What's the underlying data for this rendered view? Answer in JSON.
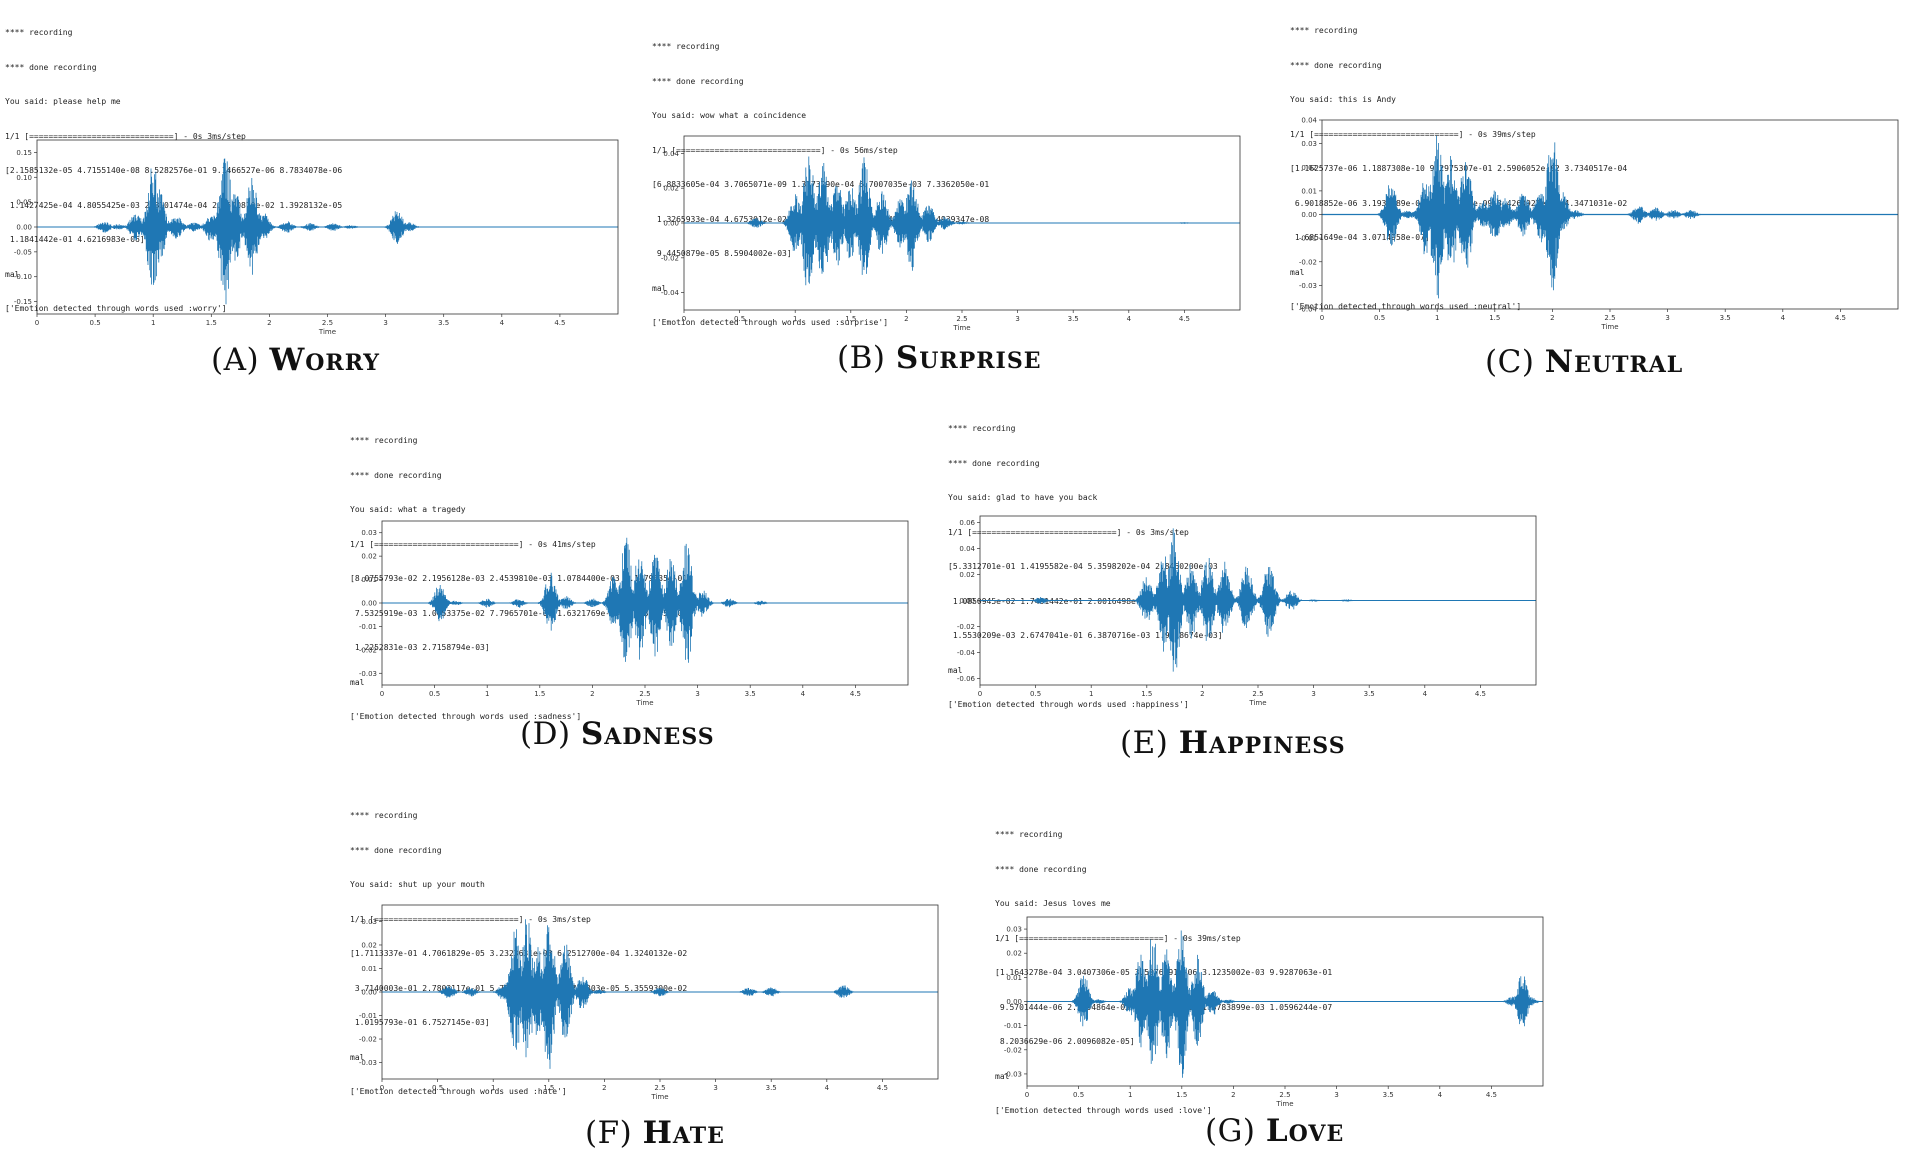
{
  "colors": {
    "wave": "#1f77b4",
    "axes": "#333333",
    "caption": "#111111"
  },
  "panels": [
    {
      "id": "A",
      "caption": {
        "letter": "(A)",
        "label": "Worry"
      },
      "console": [
        "**** recording",
        "**** done recording",
        "You said: please help me",
        "1/1 [==============================] - 0s 3ms/step",
        "[2.1585132e-05 4.7155140e-08 8.5282576e-01 9.1466527e-06 8.7834078e-06",
        " 1.1427425e-04 4.8055425e-03 2.8101474e-04 2.3500878e-02 1.3928132e-05",
        " 1.1841442e-01 4.6216983e-06]",
        "mal",
        "['Emotion detected through words used :worry']"
      ],
      "chart_data": {
        "type": "line",
        "xlabel": "Time",
        "ylabel": "",
        "xlim": [
          0,
          5
        ],
        "ylim": [
          -0.175,
          0.175
        ],
        "xticks": [
          "0",
          "0.5",
          "1",
          "1.5",
          "2",
          "2.5",
          "3",
          "3.5",
          "4",
          "4.5"
        ],
        "yticks": [
          "0.15",
          "0.10",
          "0.05",
          "0.00",
          "-0.05",
          "-0.10",
          "-0.15"
        ],
        "grid": false,
        "envelope": [
          {
            "x": 0.58,
            "amp": 0.012
          },
          {
            "x": 0.7,
            "amp": 0.006
          },
          {
            "x": 0.85,
            "amp": 0.03
          },
          {
            "x": 1.0,
            "amp": 0.14
          },
          {
            "x": 1.05,
            "amp": 0.08
          },
          {
            "x": 1.2,
            "amp": 0.025
          },
          {
            "x": 1.35,
            "amp": 0.01
          },
          {
            "x": 1.5,
            "amp": 0.03
          },
          {
            "x": 1.62,
            "amp": 0.16
          },
          {
            "x": 1.7,
            "amp": 0.08
          },
          {
            "x": 1.85,
            "amp": 0.1
          },
          {
            "x": 1.95,
            "amp": 0.03
          },
          {
            "x": 2.15,
            "amp": 0.012
          },
          {
            "x": 2.35,
            "amp": 0.008
          },
          {
            "x": 2.55,
            "amp": 0.008
          },
          {
            "x": 2.7,
            "amp": 0.004
          },
          {
            "x": 3.1,
            "amp": 0.035
          },
          {
            "x": 3.2,
            "amp": 0.01
          }
        ]
      }
    },
    {
      "id": "B",
      "caption": {
        "letter": "(B)",
        "label": "Surprise"
      },
      "console": [
        "**** recording",
        "**** done recording",
        "You said: wow what a coincidence",
        "1/1 [==============================] - 0s 56ms/step",
        "[6.8833605e-04 3.7065071e-09 1.3773290e-04 6.7007035e-03 7.3362050e-01",
        " 1.3265933e-04 4.6753012e-02 2.0993219e-03 2.0117477e-01 2.4939347e-08",
        " 9.4450879e-05 8.5904002e-03]",
        "mal",
        "['Emotion detected through words used :surprise']"
      ],
      "chart_data": {
        "type": "line",
        "xlabel": "Time",
        "ylabel": "",
        "xlim": [
          0,
          5
        ],
        "ylim": [
          -0.05,
          0.05
        ],
        "xticks": [
          "0",
          "0.5",
          "1",
          "1.5",
          "2",
          "2.5",
          "3",
          "3.5",
          "4",
          "4.5"
        ],
        "yticks": [
          "0.04",
          "0.02",
          "0.00",
          "-0.02",
          "-0.04"
        ],
        "grid": false,
        "envelope": [
          {
            "x": 0.65,
            "amp": 0.003
          },
          {
            "x": 1.0,
            "amp": 0.018
          },
          {
            "x": 1.12,
            "amp": 0.045
          },
          {
            "x": 1.25,
            "amp": 0.035
          },
          {
            "x": 1.38,
            "amp": 0.025
          },
          {
            "x": 1.5,
            "amp": 0.022
          },
          {
            "x": 1.62,
            "amp": 0.038
          },
          {
            "x": 1.78,
            "amp": 0.02
          },
          {
            "x": 1.95,
            "amp": 0.015
          },
          {
            "x": 2.05,
            "amp": 0.028
          },
          {
            "x": 2.2,
            "amp": 0.012
          },
          {
            "x": 2.35,
            "amp": 0.004
          },
          {
            "x": 2.5,
            "amp": 0.001
          },
          {
            "x": 4.5,
            "amp": 0.0005
          }
        ]
      }
    },
    {
      "id": "C",
      "caption": {
        "letter": "(C)",
        "label": "Neutral"
      },
      "console": [
        "**** recording",
        "**** done recording",
        "You said: this is Andy",
        "1/1 [==============================] - 0s 39ms/step",
        "[1.1625737e-06 1.1887308e-10 9.2975307e-01 2.5906052e-02 3.7340517e-04",
        " 6.9018852e-06 3.1934789e-08 2.4279323e-09 3.4260927e-07 4.3471031e-02",
        " 1.6851649e-04 3.0714958e-07]",
        "mal",
        "['Emotion detected through words used :neutral']"
      ],
      "chart_data": {
        "type": "line",
        "xlabel": "Time",
        "ylabel": "",
        "xlim": [
          0,
          5
        ],
        "ylim": [
          -0.04,
          0.04
        ],
        "xticks": [
          "0",
          "0.5",
          "1",
          "1.5",
          "2",
          "2.5",
          "3",
          "3.5",
          "4",
          "4.5"
        ],
        "yticks": [
          "0.04",
          "0.03",
          "0.02",
          "0.01",
          "0.00",
          "-0.01",
          "-0.02",
          "-0.03",
          "-0.04"
        ],
        "grid": false,
        "envelope": [
          {
            "x": 0.6,
            "amp": 0.015
          },
          {
            "x": 0.75,
            "amp": 0.002
          },
          {
            "x": 0.9,
            "amp": 0.018
          },
          {
            "x": 1.0,
            "amp": 0.037
          },
          {
            "x": 1.12,
            "amp": 0.025
          },
          {
            "x": 1.25,
            "amp": 0.028
          },
          {
            "x": 1.4,
            "amp": 0.006
          },
          {
            "x": 1.5,
            "amp": 0.012
          },
          {
            "x": 1.6,
            "amp": 0.008
          },
          {
            "x": 1.75,
            "amp": 0.01
          },
          {
            "x": 1.9,
            "amp": 0.012
          },
          {
            "x": 2.0,
            "amp": 0.035
          },
          {
            "x": 2.08,
            "amp": 0.01
          },
          {
            "x": 2.2,
            "amp": 0.002
          },
          {
            "x": 2.75,
            "amp": 0.004
          },
          {
            "x": 2.9,
            "amp": 0.003
          },
          {
            "x": 3.05,
            "amp": 0.002
          },
          {
            "x": 3.2,
            "amp": 0.002
          }
        ]
      }
    },
    {
      "id": "D",
      "caption": {
        "letter": "(D)",
        "label": "Sadness"
      },
      "console": [
        "**** recording",
        "**** done recording",
        "You said: what a tragedy",
        "1/1 [==============================] - 0s 41ms/step",
        "[8.0755793e-02 2.1956128e-03 2.4539810e-03 1.0784400e-03 8.1479335e-01",
        " 7.5325919e-03 1.0053375e-02 7.7965701e-04 1.6321769e-04 7.7032365e-02",
        " 1.2252831e-03 2.7158794e-03]",
        "mal",
        "['Emotion detected through words used :sadness']"
      ],
      "chart_data": {
        "type": "line",
        "xlabel": "Time",
        "ylabel": "",
        "xlim": [
          0,
          5
        ],
        "ylim": [
          -0.035,
          0.035
        ],
        "xticks": [
          "0",
          "0.5",
          "1",
          "1.5",
          "2",
          "2.5",
          "3",
          "3.5",
          "4",
          "4.5"
        ],
        "yticks": [
          "0.03",
          "0.02",
          "0.01",
          "0.00",
          "-0.01",
          "-0.02",
          "-0.03"
        ],
        "grid": false,
        "envelope": [
          {
            "x": 0.55,
            "amp": 0.009
          },
          {
            "x": 0.7,
            "amp": 0.001
          },
          {
            "x": 1.0,
            "amp": 0.002
          },
          {
            "x": 1.3,
            "amp": 0.002
          },
          {
            "x": 1.6,
            "amp": 0.014
          },
          {
            "x": 1.75,
            "amp": 0.003
          },
          {
            "x": 2.0,
            "amp": 0.002
          },
          {
            "x": 2.2,
            "amp": 0.012
          },
          {
            "x": 2.32,
            "amp": 0.03
          },
          {
            "x": 2.45,
            "amp": 0.026
          },
          {
            "x": 2.6,
            "amp": 0.024
          },
          {
            "x": 2.75,
            "amp": 0.022
          },
          {
            "x": 2.9,
            "amp": 0.028
          },
          {
            "x": 3.05,
            "amp": 0.006
          },
          {
            "x": 3.3,
            "amp": 0.002
          },
          {
            "x": 3.6,
            "amp": 0.001
          }
        ]
      }
    },
    {
      "id": "E",
      "caption": {
        "letter": "(E)",
        "label": "Happiness"
      },
      "console": [
        "**** recording",
        "**** done recording",
        "You said: glad to have you back",
        "1/1 [==============================] - 0s 3ms/step",
        "[5.3312701e-01 1.4195582e-04 5.3598202e-04 2.8460200e-03",
        " 1.0850945e-02 1.7491442e-01 2.0016498e-04 3.3156201e-08",
        " 1.5530209e-03 2.6747041e-01 6.3870716e-03 1.9718674e-03]",
        "mal",
        "['Emotion detected through words used :happiness']"
      ],
      "chart_data": {
        "type": "line",
        "xlabel": "Time",
        "ylabel": "",
        "xlim": [
          0,
          5
        ],
        "ylim": [
          -0.065,
          0.065
        ],
        "xticks": [
          "0",
          "0.5",
          "1",
          "1.5",
          "2",
          "2.5",
          "3",
          "3.5",
          "4",
          "4.5"
        ],
        "yticks": [
          "0.06",
          "0.04",
          "0.02",
          "0.00",
          "-0.02",
          "-0.04",
          "-0.06"
        ],
        "grid": false,
        "envelope": [
          {
            "x": 0.55,
            "amp": 0.003
          },
          {
            "x": 1.5,
            "amp": 0.02
          },
          {
            "x": 1.65,
            "amp": 0.04
          },
          {
            "x": 1.75,
            "amp": 0.058
          },
          {
            "x": 1.9,
            "amp": 0.03
          },
          {
            "x": 2.05,
            "amp": 0.035
          },
          {
            "x": 2.2,
            "amp": 0.03
          },
          {
            "x": 2.4,
            "amp": 0.028
          },
          {
            "x": 2.6,
            "amp": 0.03
          },
          {
            "x": 2.8,
            "amp": 0.008
          },
          {
            "x": 3.0,
            "amp": 0.001
          },
          {
            "x": 3.3,
            "amp": 0.001
          }
        ]
      }
    },
    {
      "id": "F",
      "caption": {
        "letter": "(F)",
        "label": "Hate"
      },
      "console": [
        "**** recording",
        "**** done recording",
        "You said: shut up your mouth",
        "1/1 [==============================] - 0s 3ms/step",
        "[1.7113337e-01 4.7061829e-05 3.2323631e-03 6.2512700e-04 1.3240132e-02",
        " 3.7140003e-01 2.7803117e-01 5.7941850e-08 2.0711303e-05 5.3559300e-02",
        " 1.0195793e-01 6.7527145e-03]",
        "mal",
        "['Emotion detected through words used :hate']"
      ],
      "chart_data": {
        "type": "line",
        "xlabel": "Time",
        "ylabel": "",
        "xlim": [
          0,
          5
        ],
        "ylim": [
          -0.037,
          0.037
        ],
        "xticks": [
          "0",
          "0.5",
          "1",
          "1.5",
          "2",
          "2.5",
          "3",
          "3.5",
          "4",
          "4.5"
        ],
        "yticks": [
          "0.03",
          "0.02",
          "0.01",
          "0.00",
          "-0.01",
          "-0.02",
          "-0.03"
        ],
        "grid": false,
        "envelope": [
          {
            "x": 0.6,
            "amp": 0.003
          },
          {
            "x": 0.8,
            "amp": 0.002
          },
          {
            "x": 1.1,
            "amp": 0.004
          },
          {
            "x": 1.2,
            "amp": 0.028
          },
          {
            "x": 1.3,
            "amp": 0.034
          },
          {
            "x": 1.4,
            "amp": 0.02
          },
          {
            "x": 1.5,
            "amp": 0.035
          },
          {
            "x": 1.65,
            "amp": 0.022
          },
          {
            "x": 1.8,
            "amp": 0.008
          },
          {
            "x": 1.95,
            "amp": 0.001
          },
          {
            "x": 2.5,
            "amp": 0.002
          },
          {
            "x": 3.3,
            "amp": 0.002
          },
          {
            "x": 3.5,
            "amp": 0.002
          },
          {
            "x": 4.15,
            "amp": 0.003
          }
        ]
      }
    },
    {
      "id": "G",
      "caption": {
        "letter": "(G)",
        "label": "Love"
      },
      "console": [
        "**** recording",
        "**** done recording",
        "You said: Jesus loves me",
        "1/1 [==============================] - 0s 39ms/step",
        "[1.1643278e-04 3.0407306e-05 3.5076291e-06 3.1235002e-03 9.9287063e-01",
        " 9.5701444e-06 2.3894864e-03 4.9385017e-05 1.3783899e-03 1.0596244e-07",
        " 8.2036629e-06 2.0096082e-05]",
        "mal",
        "['Emotion detected through words used :love']"
      ],
      "chart_data": {
        "type": "line",
        "xlabel": "Time",
        "ylabel": "",
        "xlim": [
          0,
          5
        ],
        "ylim": [
          -0.035,
          0.035
        ],
        "xticks": [
          "0",
          "0.5",
          "1",
          "1.5",
          "2",
          "2.5",
          "3",
          "3.5",
          "4",
          "4.5"
        ],
        "yticks": [
          "0.03",
          "0.02",
          "0.01",
          "0.00",
          "-0.01",
          "-0.02",
          "-0.03"
        ],
        "grid": false,
        "envelope": [
          {
            "x": 0.55,
            "amp": 0.012
          },
          {
            "x": 0.7,
            "amp": 0.001
          },
          {
            "x": 1.0,
            "amp": 0.006
          },
          {
            "x": 1.1,
            "amp": 0.02
          },
          {
            "x": 1.22,
            "amp": 0.03
          },
          {
            "x": 1.35,
            "amp": 0.024
          },
          {
            "x": 1.5,
            "amp": 0.033
          },
          {
            "x": 1.65,
            "amp": 0.02
          },
          {
            "x": 1.8,
            "amp": 0.006
          },
          {
            "x": 1.95,
            "amp": 0.001
          },
          {
            "x": 4.7,
            "amp": 0.002
          },
          {
            "x": 4.8,
            "amp": 0.012
          },
          {
            "x": 4.88,
            "amp": 0.002
          }
        ]
      }
    }
  ]
}
